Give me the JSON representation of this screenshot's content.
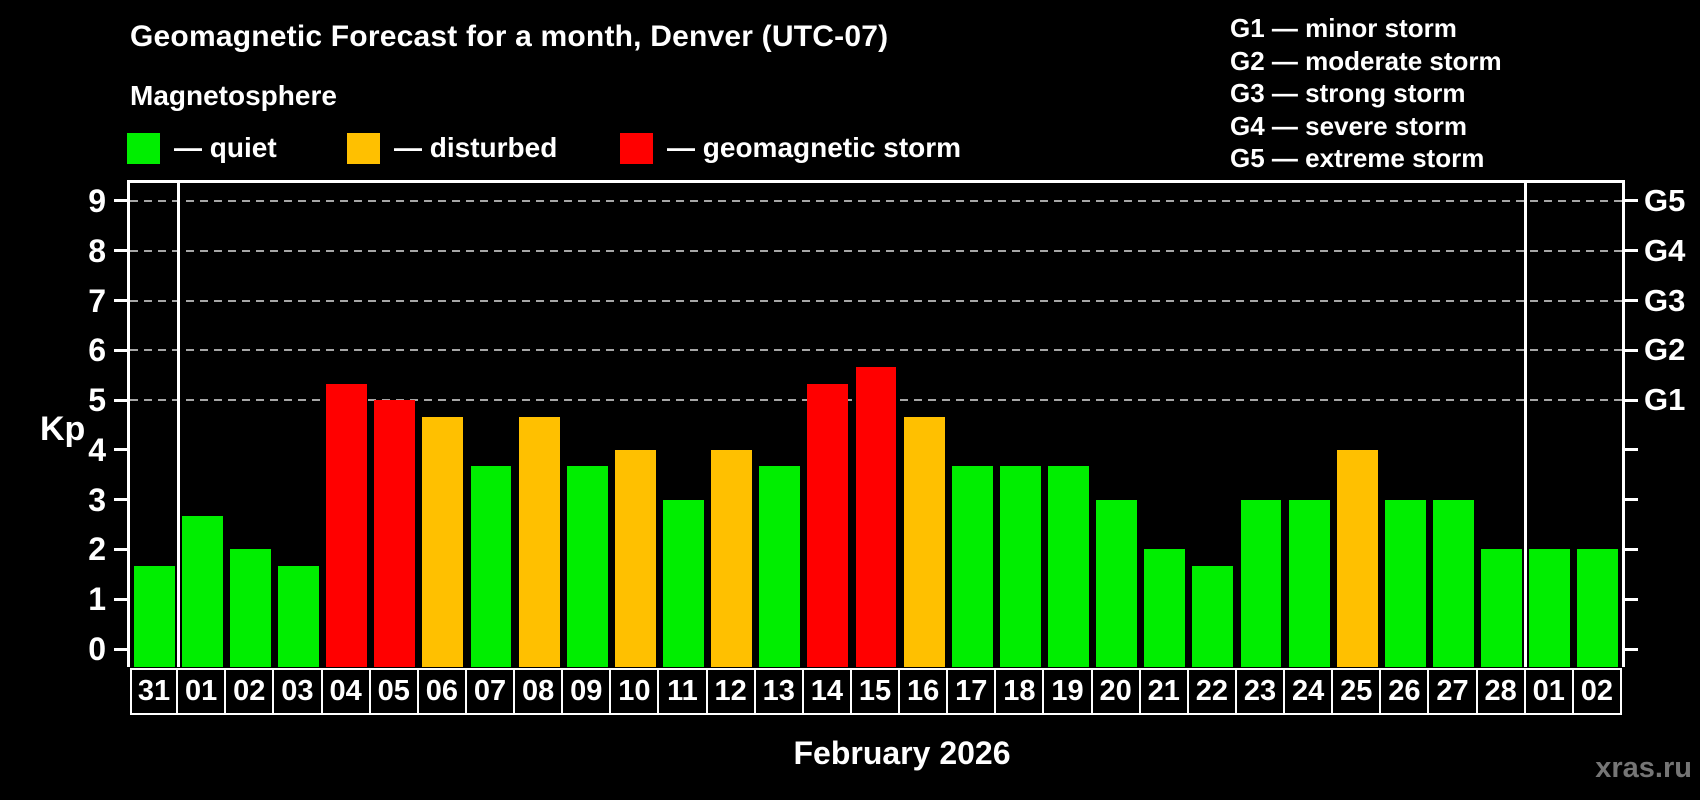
{
  "watermark": "xras.ru",
  "colors": {
    "quiet": "#00ee00",
    "disturbed": "#ffc000",
    "storm": "#ff0000",
    "grid": "#a6a6a6",
    "axis": "#ffffff",
    "watermark": "#757575"
  },
  "chart_data": {
    "type": "bar",
    "title": "Geomagnetic Forecast for a month, Denver (UTC-07)",
    "subtitle": "Magnetosphere",
    "xlabel": "February 2026",
    "ylabel": "Kp",
    "series_legend": [
      {
        "status": "quiet",
        "label": "— quiet"
      },
      {
        "status": "disturbed",
        "label": "— disturbed"
      },
      {
        "status": "storm",
        "label": "— geomagnetic storm"
      }
    ],
    "g_scale_legend": [
      "G1 — minor storm",
      "G2 — moderate storm",
      "G3 — strong storm",
      "G4 — severe storm",
      "G5 — extreme storm"
    ],
    "categories": [
      "31",
      "01",
      "02",
      "03",
      "04",
      "05",
      "06",
      "07",
      "08",
      "09",
      "10",
      "11",
      "12",
      "13",
      "14",
      "15",
      "16",
      "17",
      "18",
      "19",
      "20",
      "21",
      "22",
      "23",
      "24",
      "25",
      "26",
      "27",
      "28",
      "01",
      "02"
    ],
    "values": [
      1.67,
      2.67,
      2.0,
      1.67,
      5.33,
      5.0,
      4.67,
      3.67,
      4.67,
      3.67,
      4.0,
      3.0,
      4.0,
      3.67,
      5.33,
      5.67,
      4.67,
      3.67,
      3.67,
      3.67,
      3.0,
      2.0,
      1.67,
      3.0,
      3.0,
      4.0,
      3.0,
      3.0,
      2.0,
      2.0,
      2.0
    ],
    "status": [
      "quiet",
      "quiet",
      "quiet",
      "quiet",
      "storm",
      "storm",
      "disturbed",
      "quiet",
      "disturbed",
      "quiet",
      "disturbed",
      "quiet",
      "disturbed",
      "quiet",
      "storm",
      "storm",
      "disturbed",
      "quiet",
      "quiet",
      "quiet",
      "quiet",
      "quiet",
      "quiet",
      "quiet",
      "quiet",
      "disturbed",
      "quiet",
      "quiet",
      "quiet",
      "quiet",
      "quiet"
    ],
    "yticks": [
      0,
      1,
      2,
      3,
      4,
      5,
      6,
      7,
      8,
      9
    ],
    "grid_values": [
      5,
      6,
      7,
      8,
      9
    ],
    "right_axis": [
      {
        "value": 5,
        "label": "G1"
      },
      {
        "value": 6,
        "label": "G2"
      },
      {
        "value": 7,
        "label": "G3"
      },
      {
        "value": 8,
        "label": "G4"
      },
      {
        "value": 9,
        "label": "G5"
      }
    ],
    "ylim": [
      -0.36,
      9.36
    ],
    "separator_positions": [
      1,
      29
    ],
    "grid": true,
    "legend_position": "top-left"
  }
}
